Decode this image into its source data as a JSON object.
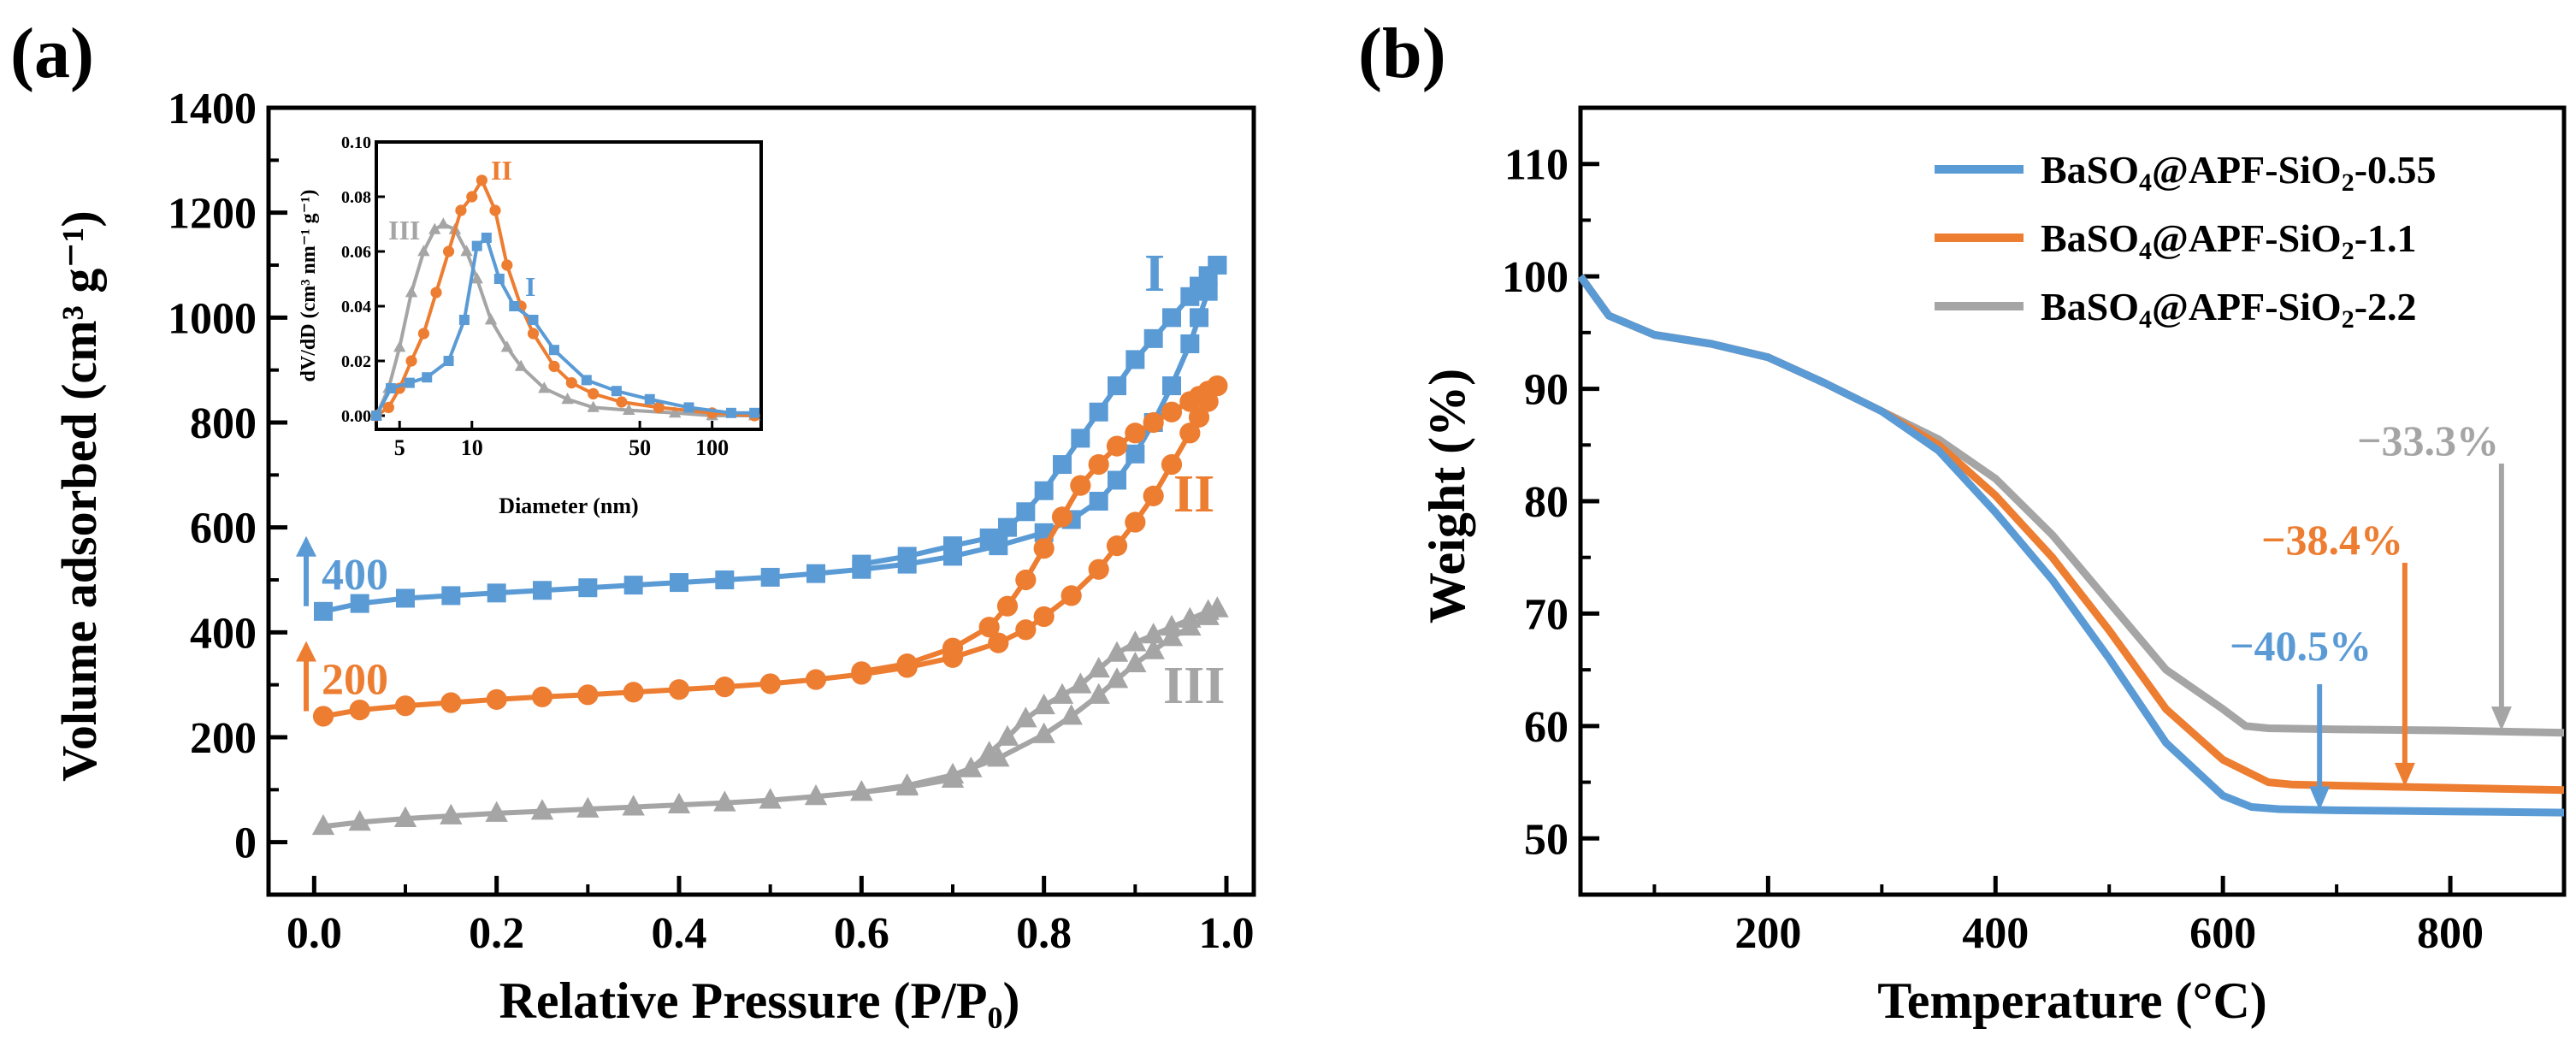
{
  "colors": {
    "blue": "#5b9bd5",
    "orange": "#ed7d31",
    "gray": "#a5a5a5",
    "axis": "#000000"
  },
  "chart_data": [
    {
      "panel_label": "(a)",
      "type": "line",
      "xlabel": "Relative Pressure (P/P₀)",
      "ylabel": "Volume adsorbed (cm³ g⁻¹)",
      "xlim": [
        -0.05,
        1.03
      ],
      "ylim": [
        -100,
        1400
      ],
      "xticks": [
        0.0,
        0.2,
        0.4,
        0.6,
        0.8,
        1.0
      ],
      "xtick_labels": [
        "0.0",
        "0.2",
        "0.4",
        "0.6",
        "0.8",
        "1.0"
      ],
      "yticks": [
        0,
        200,
        400,
        600,
        800,
        1000,
        1200,
        1400
      ],
      "ytick_labels": [
        "0",
        "200",
        "400",
        "600",
        "800",
        "1000",
        "1200",
        "1400"
      ],
      "offset_annotations": [
        {
          "text": "400",
          "color": "blue",
          "y": 440
        },
        {
          "text": "200",
          "color": "orange",
          "y": 240
        }
      ],
      "series": [
        {
          "name": "I",
          "color": "blue",
          "marker": "square",
          "adsorption": {
            "x": [
              0.01,
              0.05,
              0.1,
              0.15,
              0.2,
              0.25,
              0.3,
              0.35,
              0.4,
              0.45,
              0.5,
              0.55,
              0.6,
              0.65,
              0.7,
              0.75,
              0.8,
              0.83,
              0.86,
              0.88,
              0.9,
              0.92,
              0.94,
              0.96,
              0.97,
              0.98,
              0.99
            ],
            "y": [
              440,
              455,
              465,
              470,
              475,
              480,
              485,
              490,
              495,
              500,
              505,
              512,
              520,
              530,
              545,
              565,
              590,
              615,
              650,
              690,
              740,
              800,
              870,
              950,
              1000,
              1050,
              1100
            ]
          },
          "desorption": {
            "x": [
              0.99,
              0.98,
              0.97,
              0.96,
              0.94,
              0.92,
              0.9,
              0.88,
              0.86,
              0.84,
              0.82,
              0.8,
              0.78,
              0.76,
              0.74,
              0.7,
              0.65,
              0.6
            ],
            "y": [
              1100,
              1080,
              1060,
              1040,
              1000,
              960,
              920,
              870,
              820,
              770,
              720,
              670,
              630,
              600,
              580,
              565,
              545,
              530
            ]
          }
        },
        {
          "name": "II",
          "color": "orange",
          "marker": "circle",
          "adsorption": {
            "x": [
              0.01,
              0.05,
              0.1,
              0.15,
              0.2,
              0.25,
              0.3,
              0.35,
              0.4,
              0.45,
              0.5,
              0.55,
              0.6,
              0.65,
              0.7,
              0.75,
              0.78,
              0.8,
              0.83,
              0.86,
              0.88,
              0.9,
              0.92,
              0.94,
              0.96,
              0.97,
              0.98,
              0.99
            ],
            "y": [
              240,
              252,
              260,
              266,
              272,
              277,
              281,
              286,
              291,
              296,
              302,
              310,
              320,
              333,
              352,
              380,
              405,
              430,
              470,
              520,
              565,
              610,
              660,
              720,
              780,
              810,
              840,
              870
            ]
          },
          "desorption": {
            "x": [
              0.99,
              0.98,
              0.97,
              0.96,
              0.94,
              0.92,
              0.9,
              0.88,
              0.86,
              0.84,
              0.82,
              0.8,
              0.78,
              0.76,
              0.74,
              0.7,
              0.65,
              0.6
            ],
            "y": [
              870,
              860,
              850,
              840,
              820,
              800,
              780,
              755,
              720,
              680,
              620,
              560,
              500,
              450,
              410,
              370,
              340,
              325
            ]
          }
        },
        {
          "name": "III",
          "color": "gray",
          "marker": "triangle",
          "adsorption": {
            "x": [
              0.01,
              0.05,
              0.1,
              0.15,
              0.2,
              0.25,
              0.3,
              0.35,
              0.4,
              0.45,
              0.5,
              0.55,
              0.6,
              0.65,
              0.7,
              0.75,
              0.8,
              0.83,
              0.86,
              0.88,
              0.9,
              0.92,
              0.94,
              0.96,
              0.98,
              0.99
            ],
            "y": [
              30,
              38,
              45,
              50,
              55,
              59,
              63,
              67,
              71,
              75,
              80,
              87,
              95,
              108,
              128,
              160,
              205,
              240,
              280,
              310,
              340,
              365,
              390,
              410,
              430,
              445
            ]
          },
          "desorption": {
            "x": [
              0.99,
              0.98,
              0.96,
              0.94,
              0.92,
              0.9,
              0.88,
              0.86,
              0.84,
              0.82,
              0.8,
              0.78,
              0.76,
              0.74,
              0.72,
              0.7,
              0.65,
              0.6
            ],
            "y": [
              445,
              440,
              425,
              410,
              395,
              380,
              360,
              330,
              300,
              280,
              260,
              235,
              200,
              170,
              140,
              120,
              105,
              95
            ]
          }
        }
      ],
      "inset": {
        "type": "line",
        "xlabel": "Diameter (nm)",
        "ylabel": "dV/dD (cm³ nm⁻¹ g⁻¹)",
        "xscale": "log",
        "xlim": [
          4,
          160
        ],
        "ylim": [
          -0.005,
          0.1
        ],
        "xticks": [
          5,
          10,
          50,
          100
        ],
        "xtick_labels": [
          "5",
          "10",
          "50",
          "100"
        ],
        "yticks": [
          0.0,
          0.02,
          0.04,
          0.06,
          0.08,
          0.1
        ],
        "ytick_labels": [
          "0.00",
          "0.02",
          "0.04",
          "0.06",
          "0.08",
          "0.10"
        ],
        "series": [
          {
            "name": "I",
            "color": "blue",
            "marker": "square",
            "x": [
              4,
              4.6,
              5.5,
              6.5,
              8,
              9.3,
              10.5,
              11.5,
              13,
              15,
              18,
              22,
              30,
              40,
              55,
              80,
              120,
              150
            ],
            "y": [
              0.0,
              0.01,
              0.012,
              0.014,
              0.02,
              0.035,
              0.062,
              0.065,
              0.05,
              0.04,
              0.035,
              0.024,
              0.013,
              0.009,
              0.006,
              0.003,
              0.001,
              0.001
            ]
          },
          {
            "name": "II",
            "color": "orange",
            "marker": "circle",
            "x": [
              4,
              4.5,
              5,
              5.6,
              6.3,
              7.1,
              8,
              9,
              10,
              11,
              12.5,
              14,
              16,
              18,
              22,
              26,
              32,
              42,
              60,
              100,
              150
            ],
            "y": [
              0.0,
              0.003,
              0.01,
              0.02,
              0.03,
              0.045,
              0.06,
              0.075,
              0.08,
              0.086,
              0.075,
              0.055,
              0.04,
              0.03,
              0.018,
              0.012,
              0.008,
              0.005,
              0.003,
              0.001,
              0.0
            ]
          },
          {
            "name": "III",
            "color": "gray",
            "marker": "triangle",
            "x": [
              4,
              4.5,
              5,
              5.6,
              6.3,
              7,
              7.6,
              8.5,
              9.5,
              10.5,
              12,
              14,
              16,
              20,
              25,
              32,
              45,
              70,
              100,
              150
            ],
            "y": [
              0.0,
              0.01,
              0.025,
              0.045,
              0.06,
              0.068,
              0.07,
              0.068,
              0.06,
              0.05,
              0.035,
              0.025,
              0.018,
              0.01,
              0.006,
              0.003,
              0.002,
              0.001,
              0.0,
              0.0
            ]
          }
        ]
      }
    },
    {
      "panel_label": "(b)",
      "type": "line",
      "xlabel": "Temperature (°C)",
      "ylabel": "Weight (%)",
      "xlim": [
        35,
        900
      ],
      "ylim": [
        45,
        115
      ],
      "xticks": [
        200,
        400,
        600,
        800
      ],
      "xtick_labels": [
        "200",
        "400",
        "600",
        "800"
      ],
      "yticks": [
        50,
        60,
        70,
        80,
        90,
        100,
        110
      ],
      "ytick_labels": [
        "50",
        "60",
        "70",
        "80",
        "90",
        "100",
        "110"
      ],
      "legend": {
        "placement": "top-right"
      },
      "series": [
        {
          "name": "BaSO4@APF-SiO2-0.55",
          "name_parts": [
            "BaSO",
            "4",
            "@APF-SiO",
            "2",
            "-0.55"
          ],
          "color": "blue",
          "x": [
            35,
            60,
            100,
            150,
            200,
            250,
            300,
            350,
            400,
            450,
            500,
            550,
            600,
            625,
            650,
            700,
            800,
            900
          ],
          "y": [
            100,
            96.5,
            94.8,
            94,
            92.8,
            90.5,
            88,
            84.5,
            79,
            73,
            66,
            58.5,
            53.8,
            52.8,
            52.6,
            52.5,
            52.4,
            52.3
          ]
        },
        {
          "name": "BaSO4@APF-SiO2-1.1",
          "name_parts": [
            "BaSO",
            "4",
            "@APF-SiO",
            "2",
            "-1.1"
          ],
          "color": "orange",
          "x": [
            35,
            60,
            100,
            150,
            200,
            250,
            300,
            350,
            400,
            450,
            500,
            550,
            600,
            640,
            660,
            700,
            800,
            900
          ],
          "y": [
            100,
            96.5,
            94.8,
            94,
            92.8,
            90.5,
            88,
            85,
            80.5,
            75,
            68.5,
            61.5,
            57,
            55,
            54.8,
            54.7,
            54.5,
            54.3
          ]
        },
        {
          "name": "BaSO4@APF-SiO2-2.2",
          "name_parts": [
            "BaSO",
            "4",
            "@APF-SiO",
            "2",
            "-2.2"
          ],
          "color": "gray",
          "x": [
            35,
            60,
            100,
            150,
            200,
            250,
            300,
            350,
            400,
            450,
            500,
            550,
            600,
            620,
            640,
            700,
            800,
            900
          ],
          "y": [
            100,
            96.5,
            94.8,
            94,
            92.8,
            90.5,
            88,
            85.5,
            82,
            77,
            71,
            65,
            61.5,
            60,
            59.8,
            59.7,
            59.6,
            59.4
          ]
        }
      ],
      "annotations": [
        {
          "text": "−40.5%",
          "color": "blue",
          "x": 685,
          "y": 52.5
        },
        {
          "text": "−38.4%",
          "color": "orange",
          "x": 760,
          "y": 54.6
        },
        {
          "text": "−33.3%",
          "color": "gray",
          "x": 845,
          "y": 59.6
        }
      ]
    }
  ]
}
